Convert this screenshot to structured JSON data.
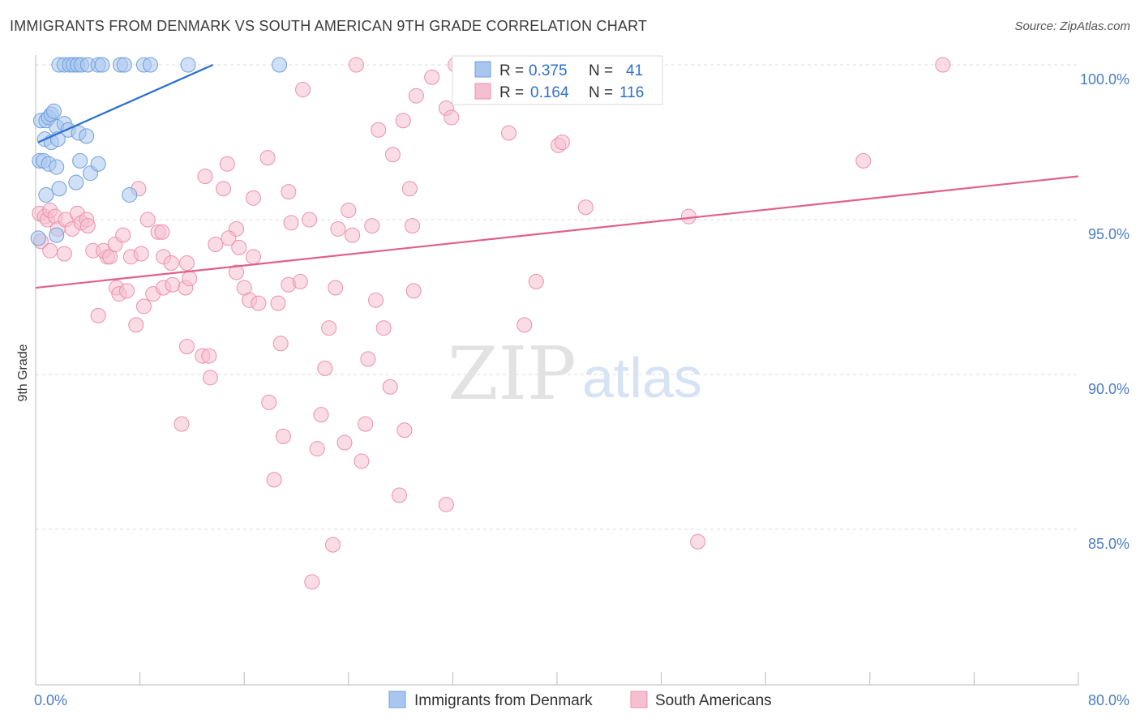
{
  "title": "IMMIGRANTS FROM DENMARK VS SOUTH AMERICAN 9TH GRADE CORRELATION CHART",
  "source": "Source: ZipAtlas.com",
  "watermark": {
    "zip": "ZIP",
    "atlas": "atlas"
  },
  "colors": {
    "blue_fill": "#a9c6ee",
    "blue_stroke": "#6f9fdc",
    "blue_line": "#2a6fcf",
    "pink_fill": "#f6bfd0",
    "pink_stroke": "#ea90ad",
    "pink_line": "#e0608a",
    "axis_text": "#4a7dc4",
    "grid": "#dddddd"
  },
  "legend_box": {
    "rows": [
      {
        "r_label": "R =",
        "r_value": "0.375",
        "n_label": "N =",
        "n_value": "41"
      },
      {
        "r_label": "R =",
        "r_value": "0.164",
        "n_label": "N =",
        "n_value": "116"
      }
    ]
  },
  "bottom_legend": [
    "Immigrants from Denmark",
    "South Americans"
  ],
  "chart_data": {
    "type": "scatter",
    "title": "IMMIGRANTS FROM DENMARK VS SOUTH AMERICAN 9TH GRADE CORRELATION CHART",
    "xlabel": "",
    "ylabel": "9th Grade",
    "xlim": [
      0,
      80
    ],
    "ylim": [
      80.5,
      100.8
    ],
    "x_tick_labels": [
      "0.0%",
      "80.0%"
    ],
    "y_ticks": [
      85,
      90,
      95,
      100
    ],
    "y_tick_labels": [
      "85.0%",
      "90.0%",
      "95.0%",
      "100.0%"
    ],
    "series": [
      {
        "name": "Immigrants from Denmark",
        "R": 0.375,
        "N": 41,
        "trend": {
          "x": [
            0.2,
            13.6
          ],
          "y": [
            97.5,
            100.0
          ]
        },
        "points": [
          [
            1.8,
            100
          ],
          [
            2.2,
            100
          ],
          [
            2.6,
            100
          ],
          [
            2.9,
            100
          ],
          [
            3.2,
            100
          ],
          [
            3.5,
            100
          ],
          [
            4.0,
            100
          ],
          [
            4.8,
            100
          ],
          [
            5.1,
            100
          ],
          [
            6.5,
            100
          ],
          [
            6.8,
            100
          ],
          [
            8.3,
            100
          ],
          [
            8.8,
            100
          ],
          [
            11.7,
            100
          ],
          [
            18.7,
            100
          ],
          [
            0.4,
            98.2
          ],
          [
            0.8,
            98.2
          ],
          [
            1.0,
            98.3
          ],
          [
            1.2,
            98.4
          ],
          [
            1.4,
            98.5
          ],
          [
            1.6,
            98.0
          ],
          [
            2.2,
            98.1
          ],
          [
            2.5,
            97.9
          ],
          [
            3.3,
            97.8
          ],
          [
            0.7,
            97.6
          ],
          [
            1.2,
            97.5
          ],
          [
            1.7,
            97.6
          ],
          [
            3.9,
            97.7
          ],
          [
            0.3,
            96.9
          ],
          [
            0.6,
            96.9
          ],
          [
            1.0,
            96.8
          ],
          [
            1.6,
            96.7
          ],
          [
            3.4,
            96.9
          ],
          [
            4.2,
            96.5
          ],
          [
            4.8,
            96.8
          ],
          [
            3.1,
            96.2
          ],
          [
            1.8,
            96.0
          ],
          [
            0.8,
            95.8
          ],
          [
            7.2,
            95.8
          ],
          [
            1.6,
            94.5
          ],
          [
            0.2,
            94.4
          ]
        ]
      },
      {
        "name": "South Americans",
        "R": 0.164,
        "N": 116,
        "trend": {
          "x": [
            0.0,
            80.0
          ],
          "y": [
            92.8,
            96.4
          ]
        },
        "points": [
          [
            24.6,
            100
          ],
          [
            32.2,
            100
          ],
          [
            32.8,
            100
          ],
          [
            40.5,
            100
          ],
          [
            69.6,
            100
          ],
          [
            20.5,
            99.2
          ],
          [
            30.4,
            99.6
          ],
          [
            29.2,
            99.0
          ],
          [
            31.5,
            98.6
          ],
          [
            31.9,
            98.3
          ],
          [
            28.2,
            98.2
          ],
          [
            26.3,
            97.9
          ],
          [
            36.3,
            97.8
          ],
          [
            40.1,
            97.4
          ],
          [
            40.4,
            97.5
          ],
          [
            27.4,
            97.1
          ],
          [
            17.8,
            97.0
          ],
          [
            14.7,
            96.8
          ],
          [
            63.5,
            96.9
          ],
          [
            13.0,
            96.4
          ],
          [
            28.7,
            96.0
          ],
          [
            14.4,
            96.0
          ],
          [
            19.4,
            95.9
          ],
          [
            16.7,
            95.7
          ],
          [
            7.9,
            96.0
          ],
          [
            24.0,
            95.3
          ],
          [
            42.2,
            95.4
          ],
          [
            50.1,
            95.1
          ],
          [
            0.3,
            95.2
          ],
          [
            0.7,
            95.1
          ],
          [
            0.9,
            95.0
          ],
          [
            1.1,
            95.3
          ],
          [
            1.5,
            95.1
          ],
          [
            1.7,
            94.7
          ],
          [
            2.3,
            95.0
          ],
          [
            2.8,
            94.7
          ],
          [
            3.2,
            95.2
          ],
          [
            3.5,
            94.9
          ],
          [
            3.9,
            95.0
          ],
          [
            4.0,
            94.8
          ],
          [
            8.6,
            95.0
          ],
          [
            9.4,
            94.6
          ],
          [
            9.7,
            94.6
          ],
          [
            19.6,
            94.9
          ],
          [
            21.0,
            95.0
          ],
          [
            23.2,
            94.7
          ],
          [
            25.8,
            94.8
          ],
          [
            28.9,
            94.8
          ],
          [
            15.4,
            94.7
          ],
          [
            0.4,
            94.3
          ],
          [
            1.1,
            94.0
          ],
          [
            2.2,
            93.9
          ],
          [
            4.4,
            94.0
          ],
          [
            5.5,
            93.8
          ],
          [
            5.2,
            94.0
          ],
          [
            5.7,
            93.8
          ],
          [
            6.1,
            94.2
          ],
          [
            6.7,
            94.5
          ],
          [
            7.3,
            93.8
          ],
          [
            8.1,
            93.9
          ],
          [
            9.8,
            93.8
          ],
          [
            10.4,
            93.6
          ],
          [
            11.6,
            93.6
          ],
          [
            13.8,
            94.2
          ],
          [
            14.8,
            94.4
          ],
          [
            15.6,
            94.1
          ],
          [
            16.7,
            93.8
          ],
          [
            24.3,
            94.5
          ],
          [
            6.2,
            92.8
          ],
          [
            6.4,
            92.6
          ],
          [
            7.0,
            92.7
          ],
          [
            8.3,
            92.2
          ],
          [
            9.0,
            92.6
          ],
          [
            9.8,
            92.8
          ],
          [
            10.5,
            92.9
          ],
          [
            11.5,
            92.8
          ],
          [
            11.8,
            93.1
          ],
          [
            15.4,
            93.3
          ],
          [
            16.0,
            92.8
          ],
          [
            16.4,
            92.4
          ],
          [
            17.1,
            92.3
          ],
          [
            18.6,
            92.3
          ],
          [
            19.4,
            92.9
          ],
          [
            20.3,
            93.0
          ],
          [
            23.0,
            92.8
          ],
          [
            26.1,
            92.4
          ],
          [
            29.0,
            92.7
          ],
          [
            38.4,
            93.0
          ],
          [
            4.8,
            91.9
          ],
          [
            7.7,
            91.6
          ],
          [
            37.5,
            91.6
          ],
          [
            22.5,
            91.5
          ],
          [
            26.7,
            91.5
          ],
          [
            11.6,
            90.9
          ],
          [
            18.8,
            91.0
          ],
          [
            12.8,
            90.6
          ],
          [
            13.3,
            90.6
          ],
          [
            22.2,
            90.2
          ],
          [
            25.5,
            90.5
          ],
          [
            13.4,
            89.9
          ],
          [
            27.2,
            89.6
          ],
          [
            17.9,
            89.1
          ],
          [
            11.2,
            88.4
          ],
          [
            21.9,
            88.7
          ],
          [
            25.3,
            88.4
          ],
          [
            28.3,
            88.2
          ],
          [
            19.0,
            88.0
          ],
          [
            21.6,
            87.6
          ],
          [
            23.7,
            87.8
          ],
          [
            25.0,
            87.2
          ],
          [
            18.3,
            86.6
          ],
          [
            27.9,
            86.1
          ],
          [
            31.5,
            85.8
          ],
          [
            50.8,
            84.6
          ],
          [
            22.8,
            84.5
          ],
          [
            21.2,
            83.3
          ]
        ]
      }
    ]
  }
}
